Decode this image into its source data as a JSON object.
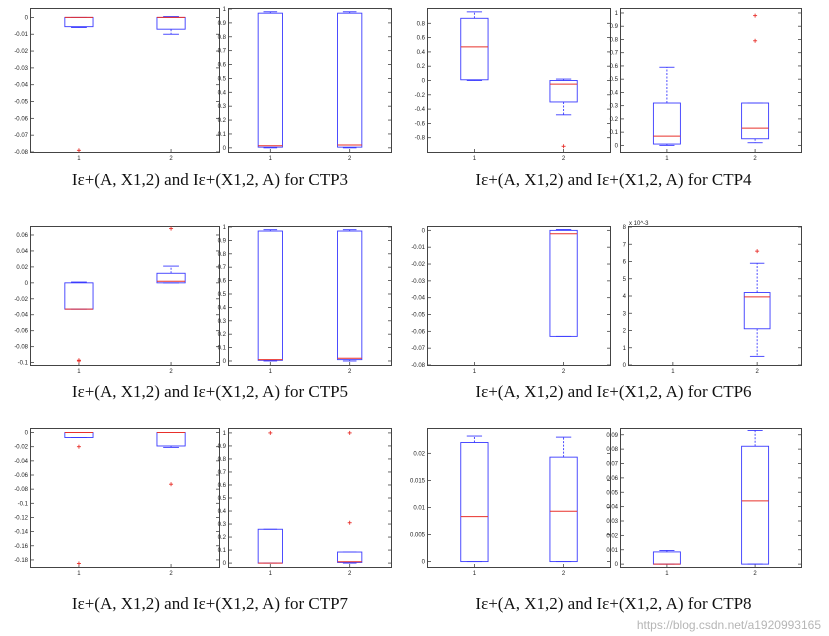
{
  "colors": {
    "box": "#3a3aff",
    "median": "#e8302b",
    "outlier": "#e8302b",
    "axis": "#444444"
  },
  "captions": {
    "ctp3": "Iε+(A, X1,2) and Iε+(X1,2, A) for CTP3",
    "ctp4": "Iε+(A, X1,2) and Iε+(X1,2, A) for CTP4",
    "ctp5": "Iε+(A, X1,2) and Iε+(X1,2, A) for CTP5",
    "ctp6": "Iε+(A, X1,2) and Iε+(X1,2, A) for CTP6",
    "ctp7": "Iε+(A, X1,2) and Iε+(X1,2, A) for CTP7",
    "ctp8": "Iε+(A, X1,2) and Iε+(X1,2, A) for CTP8"
  },
  "watermark": "https://blog.csdn.net/a1920993165",
  "chart_data": [
    {
      "id": "ctp3-left",
      "type": "box",
      "ylim": [
        -0.08,
        0.005
      ],
      "yticks": [
        0,
        -0.01,
        -0.02,
        -0.03,
        -0.04,
        -0.05,
        -0.06,
        -0.07,
        -0.08
      ],
      "ytick_labels": [
        "0",
        "-0.01",
        "-0.02",
        "-0.03",
        "-0.04",
        "-0.05",
        "-0.06",
        "-0.07",
        "-0.08"
      ],
      "categories": [
        "1",
        "2"
      ],
      "boxes": [
        {
          "low": -0.006,
          "q1": -0.0055,
          "median": 0,
          "q3": 0,
          "high": 0,
          "outliers": [
            -0.079
          ]
        },
        {
          "low": -0.01,
          "q1": -0.007,
          "median": 0,
          "q3": 0,
          "high": 0.0005,
          "outliers": []
        }
      ]
    },
    {
      "id": "ctp3-right",
      "type": "box",
      "ylim": [
        -0.03,
        1.0
      ],
      "yticks": [
        0,
        0.1,
        0.2,
        0.3,
        0.4,
        0.5,
        0.6,
        0.7,
        0.8,
        0.9,
        1
      ],
      "ytick_labels": [
        "0",
        "0.1",
        "0.2",
        "0.3",
        "0.4",
        "0.5",
        "0.6",
        "0.7",
        "0.8",
        "0.9",
        "1"
      ],
      "categories": [
        "1",
        "2"
      ],
      "boxes": [
        {
          "low": 0,
          "q1": 0.005,
          "median": 0.015,
          "q3": 0.97,
          "high": 0.98,
          "outliers": []
        },
        {
          "low": 0,
          "q1": 0.005,
          "median": 0.02,
          "q3": 0.97,
          "high": 0.98,
          "outliers": []
        }
      ]
    },
    {
      "id": "ctp4-left",
      "type": "box",
      "ylim": [
        -1.0,
        1.0
      ],
      "yticks": [
        0.8,
        0.6,
        0.4,
        0.2,
        0,
        -0.2,
        -0.4,
        -0.6,
        -0.8
      ],
      "ytick_labels": [
        "0.8",
        "0.6",
        "0.4",
        "0.2",
        "0",
        "-0.2",
        "-0.4",
        "-0.6",
        "-0.8"
      ],
      "categories": [
        "1",
        "2"
      ],
      "boxes": [
        {
          "low": 0,
          "q1": 0.01,
          "median": 0.47,
          "q3": 0.87,
          "high": 0.96,
          "outliers": []
        },
        {
          "low": -0.48,
          "q1": -0.3,
          "median": -0.05,
          "q3": 0,
          "high": 0.02,
          "outliers": [
            -0.92
          ]
        }
      ]
    },
    {
      "id": "ctp4-right",
      "type": "box",
      "ylim": [
        -0.05,
        1.03
      ],
      "yticks": [
        0,
        0.1,
        0.2,
        0.3,
        0.4,
        0.5,
        0.6,
        0.7,
        0.8,
        0.9,
        1
      ],
      "ytick_labels": [
        "0",
        "0.1",
        "0.2",
        "0.3",
        "0.4",
        "0.5",
        "0.6",
        "0.7",
        "0.8",
        "0.9",
        "1"
      ],
      "categories": [
        "1",
        "2"
      ],
      "boxes": [
        {
          "low": 0,
          "q1": 0.01,
          "median": 0.07,
          "q3": 0.32,
          "high": 0.59,
          "outliers": []
        },
        {
          "low": 0.02,
          "q1": 0.05,
          "median": 0.13,
          "q3": 0.32,
          "high": 0.32,
          "outliers": [
            0.79,
            0.98
          ]
        }
      ]
    },
    {
      "id": "ctp5-left",
      "type": "box",
      "ylim": [
        -0.103,
        0.07
      ],
      "yticks": [
        0.06,
        0.04,
        0.02,
        0,
        -0.02,
        -0.04,
        -0.06,
        -0.08,
        -0.1
      ],
      "ytick_labels": [
        "0.06",
        "0.04",
        "0.02",
        "0",
        "-0.02",
        "-0.04",
        "-0.06",
        "-0.08",
        "-0.1"
      ],
      "categories": [
        "1",
        "2"
      ],
      "boxes": [
        {
          "low": -0.033,
          "q1": -0.033,
          "median": -0.033,
          "q3": 0,
          "high": 0.001,
          "outliers": [
            -0.097,
            -0.098
          ]
        },
        {
          "low": 0,
          "q1": 0,
          "median": 0.002,
          "q3": 0.012,
          "high": 0.021,
          "outliers": [
            0.068
          ]
        }
      ]
    },
    {
      "id": "ctp5-right",
      "type": "box",
      "ylim": [
        -0.03,
        1.0
      ],
      "yticks": [
        0,
        0.1,
        0.2,
        0.3,
        0.4,
        0.5,
        0.6,
        0.7,
        0.8,
        0.9,
        1
      ],
      "ytick_labels": [
        "0",
        "0.1",
        "0.2",
        "0.3",
        "0.4",
        "0.5",
        "0.6",
        "0.7",
        "0.8",
        "0.9",
        "1"
      ],
      "categories": [
        "1",
        "2"
      ],
      "boxes": [
        {
          "low": 0,
          "q1": 0.005,
          "median": 0.01,
          "q3": 0.97,
          "high": 0.98,
          "outliers": []
        },
        {
          "low": 0,
          "q1": 0.01,
          "median": 0.02,
          "q3": 0.97,
          "high": 0.98,
          "outliers": []
        }
      ]
    },
    {
      "id": "ctp6-left",
      "type": "box",
      "ylim": [
        -0.08,
        0.002
      ],
      "yticks": [
        0,
        -0.01,
        -0.02,
        -0.03,
        -0.04,
        -0.05,
        -0.06,
        -0.07,
        -0.08
      ],
      "ytick_labels": [
        "0",
        "-0.01",
        "-0.02",
        "-0.03",
        "-0.04",
        "-0.05",
        "-0.06",
        "-0.07",
        "-0.08"
      ],
      "categories": [
        "1",
        "2"
      ],
      "boxes": [
        null,
        {
          "low": -0.063,
          "q1": -0.063,
          "median": -0.002,
          "q3": 0,
          "high": 0.0005,
          "outliers": []
        }
      ]
    },
    {
      "id": "ctp6-right",
      "type": "box",
      "ylim": [
        0,
        8
      ],
      "y_multiplier": "x 10^-3",
      "yticks": [
        0,
        1,
        2,
        3,
        4,
        5,
        6,
        7,
        8
      ],
      "ytick_labels": [
        "0",
        "1",
        "2",
        "3",
        "4",
        "5",
        "6",
        "7",
        "8"
      ],
      "categories": [
        "1",
        "2"
      ],
      "boxes": [
        null,
        {
          "low": 0.5,
          "q1": 2.1,
          "median": 3.95,
          "q3": 4.2,
          "high": 5.9,
          "outliers": [
            6.6
          ]
        }
      ]
    },
    {
      "id": "ctp7-left",
      "type": "box",
      "ylim": [
        -0.19,
        0.005
      ],
      "yticks": [
        0,
        -0.02,
        -0.04,
        -0.06,
        -0.08,
        -0.1,
        -0.12,
        -0.14,
        -0.16,
        -0.18
      ],
      "ytick_labels": [
        "0",
        "-0.02",
        "-0.04",
        "-0.06",
        "-0.08",
        "-0.1",
        "-0.12",
        "-0.14",
        "-0.16",
        "-0.18"
      ],
      "categories": [
        "1",
        "2"
      ],
      "boxes": [
        {
          "low": -0.007,
          "q1": -0.007,
          "median": 0,
          "q3": 0,
          "high": 0,
          "outliers": [
            -0.02,
            -0.185
          ]
        },
        {
          "low": -0.021,
          "q1": -0.019,
          "median": 0,
          "q3": 0,
          "high": 0,
          "outliers": [
            -0.073
          ]
        }
      ]
    },
    {
      "id": "ctp7-right",
      "type": "box",
      "ylim": [
        -0.03,
        1.03
      ],
      "yticks": [
        0,
        0.1,
        0.2,
        0.3,
        0.4,
        0.5,
        0.6,
        0.7,
        0.8,
        0.9,
        1
      ],
      "ytick_labels": [
        "0",
        "0.1",
        "0.2",
        "0.3",
        "0.4",
        "0.5",
        "0.6",
        "0.7",
        "0.8",
        "0.9",
        "1"
      ],
      "categories": [
        "1",
        "2"
      ],
      "boxes": [
        {
          "low": 0,
          "q1": 0,
          "median": 0,
          "q3": 0.26,
          "high": 0.26,
          "outliers": [
            1.0
          ]
        },
        {
          "low": 0,
          "q1": 0.005,
          "median": 0.01,
          "q3": 0.085,
          "high": 0.085,
          "outliers": [
            0.31,
            1.0
          ]
        }
      ]
    },
    {
      "id": "ctp8-left",
      "type": "box",
      "ylim": [
        -0.001,
        0.0245
      ],
      "yticks": [
        0,
        0.005,
        0.01,
        0.015,
        0.02
      ],
      "ytick_labels": [
        "0",
        "0.005",
        "0.01",
        "0.015",
        "0.02"
      ],
      "categories": [
        "1",
        "2"
      ],
      "boxes": [
        {
          "low": 0,
          "q1": 0,
          "median": 0.0083,
          "q3": 0.022,
          "high": 0.0232,
          "outliers": []
        },
        {
          "low": 0,
          "q1": 0,
          "median": 0.0093,
          "q3": 0.0193,
          "high": 0.023,
          "outliers": []
        }
      ]
    },
    {
      "id": "ctp8-right",
      "type": "box",
      "ylim": [
        -0.002,
        0.094
      ],
      "yticks": [
        0,
        0.01,
        0.02,
        0.03,
        0.04,
        0.05,
        0.06,
        0.07,
        0.08,
        0.09
      ],
      "ytick_labels": [
        "0",
        "0.01",
        "0.02",
        "0.03",
        "0.04",
        "0.05",
        "0.06",
        "0.07",
        "0.08",
        "0.09"
      ],
      "categories": [
        "1",
        "2"
      ],
      "boxes": [
        {
          "low": 0,
          "q1": 0,
          "median": 0,
          "q3": 0.0085,
          "high": 0.0095,
          "outliers": []
        },
        {
          "low": 0,
          "q1": 0,
          "median": 0.044,
          "q3": 0.082,
          "high": 0.093,
          "outliers": []
        }
      ]
    }
  ]
}
